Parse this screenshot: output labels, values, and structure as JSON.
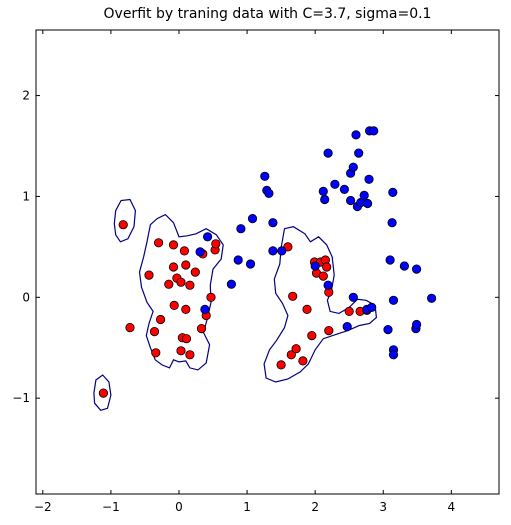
{
  "chart_data": {
    "type": "scatter",
    "title": "Overfit by traning data with C=3.7, sigma=0.1",
    "xlabel": "",
    "ylabel": "",
    "xlim": [
      -2.1,
      4.7
    ],
    "ylim": [
      -1.95,
      2.65
    ],
    "xticks": [
      -2,
      -1,
      0,
      1,
      2,
      3,
      4
    ],
    "yticks": [
      -1,
      0,
      1,
      2
    ],
    "xtick_labels": [
      "−2",
      "−1",
      "0",
      "1",
      "2",
      "3",
      "4"
    ],
    "ytick_labels": [
      "−1",
      "0",
      "1",
      "2"
    ],
    "grid": false,
    "legend": false,
    "colors": {
      "class_red": "#ff0000",
      "class_blue": "#0000ff",
      "boundary": "#000080",
      "marker_edge": "#000000"
    },
    "series": [
      {
        "color": "#ff0000",
        "points": [
          [
            -0.82,
            0.72
          ],
          [
            -1.11,
            -0.95
          ],
          [
            -0.72,
            -0.3
          ],
          [
            -0.44,
            0.22
          ],
          [
            -0.36,
            -0.34
          ],
          [
            -0.34,
            -0.55
          ],
          [
            -0.3,
            0.54
          ],
          [
            -0.27,
            -0.22
          ],
          [
            -0.15,
            0.13
          ],
          [
            -0.08,
            0.52
          ],
          [
            -0.08,
            0.3
          ],
          [
            -0.07,
            -0.08
          ],
          [
            -0.03,
            0.19
          ],
          [
            0.03,
            0.15
          ],
          [
            0.03,
            -0.53
          ],
          [
            0.05,
            -0.4
          ],
          [
            0.08,
            0.46
          ],
          [
            0.1,
            0.32
          ],
          [
            0.1,
            -0.12
          ],
          [
            0.11,
            -0.41
          ],
          [
            0.16,
            -0.57
          ],
          [
            0.16,
            0.12
          ],
          [
            0.24,
            0.25
          ],
          [
            0.33,
            -0.31
          ],
          [
            0.35,
            0.43
          ],
          [
            0.4,
            -0.18
          ],
          [
            0.47,
            0.0
          ],
          [
            0.53,
            0.47
          ],
          [
            0.54,
            0.53
          ],
          [
            1.6,
            0.5
          ],
          [
            1.67,
            0.01
          ],
          [
            1.65,
            -0.57
          ],
          [
            1.72,
            -0.51
          ],
          [
            1.82,
            -0.63
          ],
          [
            1.88,
            -0.12
          ],
          [
            1.95,
            -0.38
          ],
          [
            1.99,
            0.35
          ],
          [
            2.02,
            0.24
          ],
          [
            2.08,
            0.35
          ],
          [
            2.12,
            0.21
          ],
          [
            2.15,
            0.37
          ],
          [
            2.17,
            0.3
          ],
          [
            2.2,
            0.05
          ],
          [
            2.2,
            -0.33
          ],
          [
            2.5,
            -0.14
          ],
          [
            2.66,
            -0.14
          ],
          [
            2.76,
            -0.13
          ],
          [
            1.5,
            -0.67
          ]
        ]
      },
      {
        "color": "#0000ff",
        "points": [
          [
            0.31,
            0.45
          ],
          [
            0.38,
            -0.12
          ],
          [
            0.42,
            0.6
          ],
          [
            0.77,
            0.13
          ],
          [
            0.87,
            0.37
          ],
          [
            0.91,
            0.68
          ],
          [
            1.05,
            0.33
          ],
          [
            1.08,
            0.78
          ],
          [
            1.26,
            1.2
          ],
          [
            1.29,
            1.06
          ],
          [
            1.32,
            1.03
          ],
          [
            1.38,
            0.74
          ],
          [
            1.38,
            0.46
          ],
          [
            1.51,
            0.46
          ],
          [
            2.0,
            0.31
          ],
          [
            2.12,
            1.05
          ],
          [
            2.14,
            0.97
          ],
          [
            2.19,
            0.12
          ],
          [
            2.19,
            1.43
          ],
          [
            2.29,
            1.12
          ],
          [
            2.43,
            1.07
          ],
          [
            2.47,
            -0.29
          ],
          [
            2.52,
            0.96
          ],
          [
            2.52,
            1.23
          ],
          [
            2.56,
            1.29
          ],
          [
            2.56,
            0.0
          ],
          [
            2.6,
            1.61
          ],
          [
            2.62,
            0.9
          ],
          [
            2.64,
            1.43
          ],
          [
            2.67,
            0.94
          ],
          [
            2.72,
            1.01
          ],
          [
            2.76,
            -0.12
          ],
          [
            2.77,
            0.93
          ],
          [
            2.79,
            1.17
          ],
          [
            2.8,
            1.65
          ],
          [
            2.83,
            -0.1
          ],
          [
            2.86,
            1.65
          ],
          [
            3.07,
            -0.32
          ],
          [
            3.1,
            0.37
          ],
          [
            3.13,
            0.74
          ],
          [
            3.14,
            1.04
          ],
          [
            3.15,
            -0.03
          ],
          [
            3.15,
            -0.52
          ],
          [
            3.15,
            -0.57
          ],
          [
            3.31,
            0.31
          ],
          [
            3.48,
            -0.31
          ],
          [
            3.49,
            -0.27
          ],
          [
            3.49,
            0.28
          ],
          [
            3.71,
            -0.01
          ]
        ]
      }
    ],
    "boundaries": [
      [
        [
          -0.95,
          0.73
        ],
        [
          -0.93,
          0.86
        ],
        [
          -0.85,
          0.96
        ],
        [
          -0.72,
          0.97
        ],
        [
          -0.64,
          0.86
        ],
        [
          -0.66,
          0.7
        ],
        [
          -0.75,
          0.58
        ],
        [
          -0.86,
          0.55
        ],
        [
          -0.93,
          0.62
        ],
        [
          -0.95,
          0.73
        ]
      ],
      [
        [
          -1.25,
          -0.95
        ],
        [
          -1.22,
          -0.82
        ],
        [
          -1.12,
          -0.77
        ],
        [
          -1.03,
          -0.84
        ],
        [
          -1.0,
          -0.97
        ],
        [
          -1.05,
          -1.1
        ],
        [
          -1.15,
          -1.12
        ],
        [
          -1.24,
          -1.05
        ],
        [
          -1.25,
          -0.95
        ]
      ],
      [
        [
          -0.42,
          0.72
        ],
        [
          -0.32,
          0.78
        ],
        [
          -0.2,
          0.82
        ],
        [
          -0.08,
          0.74
        ],
        [
          0.0,
          0.6
        ],
        [
          0.12,
          0.61
        ],
        [
          0.25,
          0.63
        ],
        [
          0.4,
          0.68
        ],
        [
          0.55,
          0.62
        ],
        [
          0.65,
          0.52
        ],
        [
          0.62,
          0.38
        ],
        [
          0.5,
          0.28
        ],
        [
          0.46,
          0.12
        ],
        [
          0.47,
          -0.05
        ],
        [
          0.42,
          -0.2
        ],
        [
          0.36,
          -0.35
        ],
        [
          0.45,
          -0.47
        ],
        [
          0.4,
          -0.65
        ],
        [
          0.28,
          -0.72
        ],
        [
          0.16,
          -0.7
        ],
        [
          0.1,
          -0.63
        ],
        [
          0.0,
          -0.64
        ],
        [
          -0.08,
          -0.62
        ],
        [
          -0.14,
          -0.7
        ],
        [
          -0.25,
          -0.67
        ],
        [
          -0.35,
          -0.62
        ],
        [
          -0.42,
          -0.5
        ],
        [
          -0.48,
          -0.38
        ],
        [
          -0.44,
          -0.26
        ],
        [
          -0.38,
          -0.14
        ],
        [
          -0.47,
          -0.05
        ],
        [
          -0.55,
          0.1
        ],
        [
          -0.58,
          0.25
        ],
        [
          -0.52,
          0.4
        ],
        [
          -0.47,
          0.55
        ],
        [
          -0.42,
          0.72
        ]
      ],
      [
        [
          1.55,
          0.68
        ],
        [
          1.68,
          0.7
        ],
        [
          1.85,
          0.63
        ],
        [
          1.93,
          0.55
        ],
        [
          2.05,
          0.6
        ],
        [
          2.17,
          0.52
        ],
        [
          2.25,
          0.4
        ],
        [
          2.28,
          0.22
        ],
        [
          2.24,
          0.07
        ],
        [
          2.18,
          -0.03
        ],
        [
          2.22,
          -0.14
        ],
        [
          2.35,
          -0.16
        ],
        [
          2.5,
          -0.1
        ],
        [
          2.62,
          -0.02
        ],
        [
          2.75,
          -0.03
        ],
        [
          2.88,
          -0.08
        ],
        [
          2.9,
          -0.2
        ],
        [
          2.8,
          -0.26
        ],
        [
          2.65,
          -0.28
        ],
        [
          2.48,
          -0.33
        ],
        [
          2.3,
          -0.37
        ],
        [
          2.12,
          -0.41
        ],
        [
          2.0,
          -0.52
        ],
        [
          1.9,
          -0.66
        ],
        [
          1.78,
          -0.74
        ],
        [
          1.6,
          -0.81
        ],
        [
          1.42,
          -0.84
        ],
        [
          1.28,
          -0.8
        ],
        [
          1.25,
          -0.66
        ],
        [
          1.33,
          -0.52
        ],
        [
          1.43,
          -0.43
        ],
        [
          1.55,
          -0.3
        ],
        [
          1.6,
          -0.18
        ],
        [
          1.52,
          -0.06
        ],
        [
          1.42,
          0.04
        ],
        [
          1.4,
          0.18
        ],
        [
          1.48,
          0.33
        ],
        [
          1.5,
          0.49
        ],
        [
          1.55,
          0.68
        ]
      ]
    ]
  }
}
